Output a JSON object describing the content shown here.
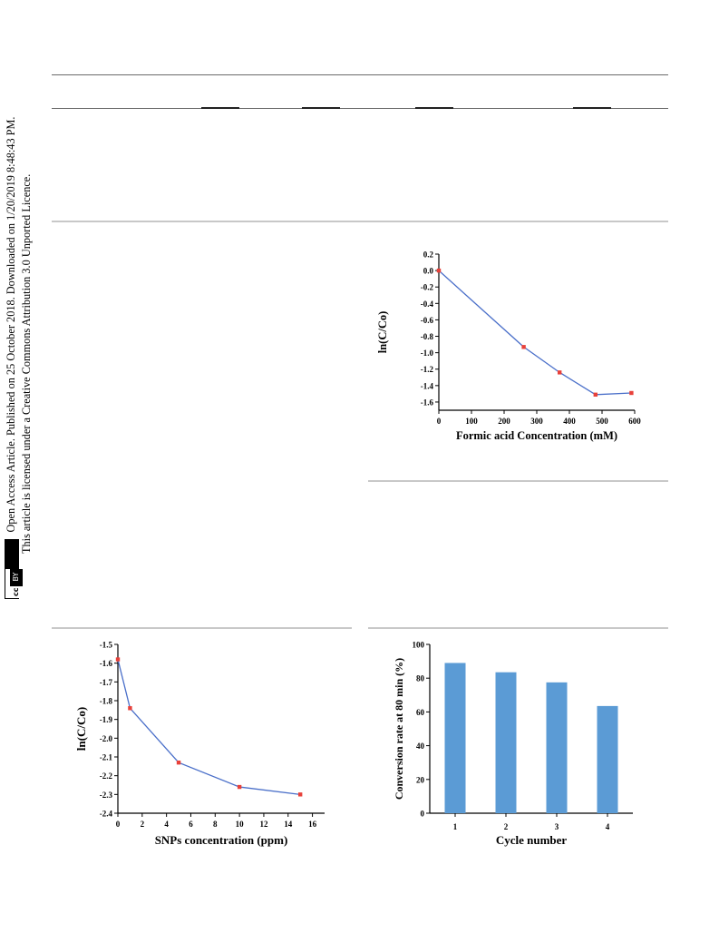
{
  "sidebar": {
    "line1": "Open Access Article. Published on 25 October 2018. Downloaded on 1/20/2019 8:48:43 PM.",
    "line2": "This article is licensed under a Creative Commons Attribution 3.0 Unported Licence.",
    "badge_cc": "cc",
    "badge_by": "BY"
  },
  "chart_data": [
    {
      "type": "line",
      "xlabel": "Formic acid Concentration (mM)",
      "ylabel": "ln(C/Co)",
      "xlim": [
        0,
        600
      ],
      "ylim": [
        -1.7,
        0.2
      ],
      "xticks": [
        0,
        100,
        200,
        300,
        400,
        500,
        600
      ],
      "yticks": [
        0.2,
        0.0,
        -0.2,
        -0.4,
        -0.6,
        -0.8,
        -1.0,
        -1.2,
        -1.4,
        -1.6
      ],
      "x": [
        0,
        260,
        370,
        480,
        590
      ],
      "y": [
        0.0,
        -0.93,
        -1.24,
        -1.51,
        -1.49
      ],
      "line_color": "#4a6fc9",
      "marker_color": "#e8413a"
    },
    {
      "type": "line",
      "xlabel": "SNPs concentration (ppm)",
      "ylabel": "ln(C/Co)",
      "xlim": [
        0,
        17
      ],
      "ylim": [
        -2.4,
        -1.5
      ],
      "xticks": [
        0,
        2,
        4,
        6,
        8,
        10,
        12,
        14,
        16
      ],
      "yticks": [
        -1.5,
        -1.6,
        -1.7,
        -1.8,
        -1.9,
        -2.0,
        -2.1,
        -2.2,
        -2.3,
        -2.4
      ],
      "x": [
        0,
        1,
        5,
        10,
        15
      ],
      "y": [
        -1.58,
        -1.84,
        -2.13,
        -2.26,
        -2.3
      ],
      "line_color": "#4a6fc9",
      "marker_color": "#e8413a"
    },
    {
      "type": "bar",
      "xlabel": "Cycle number",
      "ylabel": "Conversion rate at 80 min (%)",
      "categories": [
        "1",
        "2",
        "3",
        "4"
      ],
      "values": [
        89,
        83.5,
        77.5,
        63.5
      ],
      "ylim": [
        0,
        100
      ],
      "yticks": [
        0,
        20,
        40,
        60,
        80,
        100
      ],
      "bar_color": "#5b9bd5"
    }
  ]
}
